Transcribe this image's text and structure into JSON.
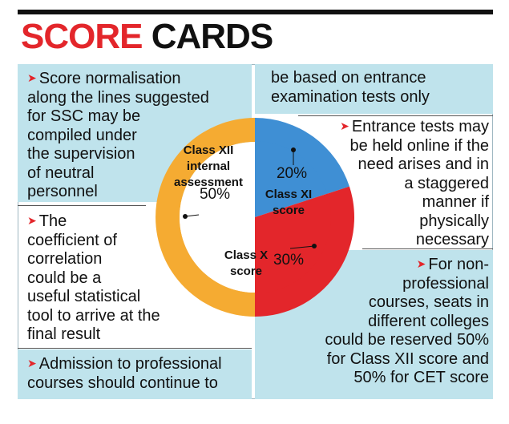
{
  "title": {
    "word1": "SCORE",
    "word2": "CARDS"
  },
  "notes": {
    "left": [
      {
        "lines": [
          "Score normalisation",
          "along the lines suggested",
          "for SSC may be",
          "compiled under",
          "the supervision",
          "of neutral",
          "personnel"
        ]
      },
      {
        "lines": [
          "The",
          "coefficient of",
          "correlation",
          "could be a",
          "useful statistical",
          "tool to arrive at the",
          "final result"
        ]
      },
      {
        "lines": [
          "Admission to professional",
          "courses should continue to"
        ]
      }
    ],
    "right": [
      {
        "lines": [
          "be based on entrance",
          "examination tests only"
        ]
      },
      {
        "lines": [
          "Entrance tests may",
          "be held online if the",
          "need arises and in",
          "a staggered",
          "manner if",
          "physically",
          "necessary"
        ]
      },
      {
        "lines": [
          "For non-",
          "professional",
          "courses, seats in",
          "different colleges",
          "could be reserved 50%",
          "for Class XII score and",
          "50% for CET score"
        ]
      }
    ]
  },
  "chart_data": {
    "type": "pie",
    "title": "",
    "categories": [
      "Class XI score",
      "Class X score",
      "Class XII internal assessment"
    ],
    "values": [
      20,
      30,
      50
    ],
    "value_labels": [
      "20%",
      "30%",
      "50%"
    ],
    "label_lines": [
      [
        "Class XI",
        "score"
      ],
      [
        "Class X",
        "score"
      ],
      [
        "Class XII",
        "internal",
        "assessment"
      ]
    ],
    "colors": [
      "#3f8fd4",
      "#e3262b",
      "#f5ab32"
    ],
    "legend": "none",
    "style": "donut"
  },
  "colors": {
    "accent_red": "#e3262b",
    "box_blue": "#bfe3ec"
  }
}
